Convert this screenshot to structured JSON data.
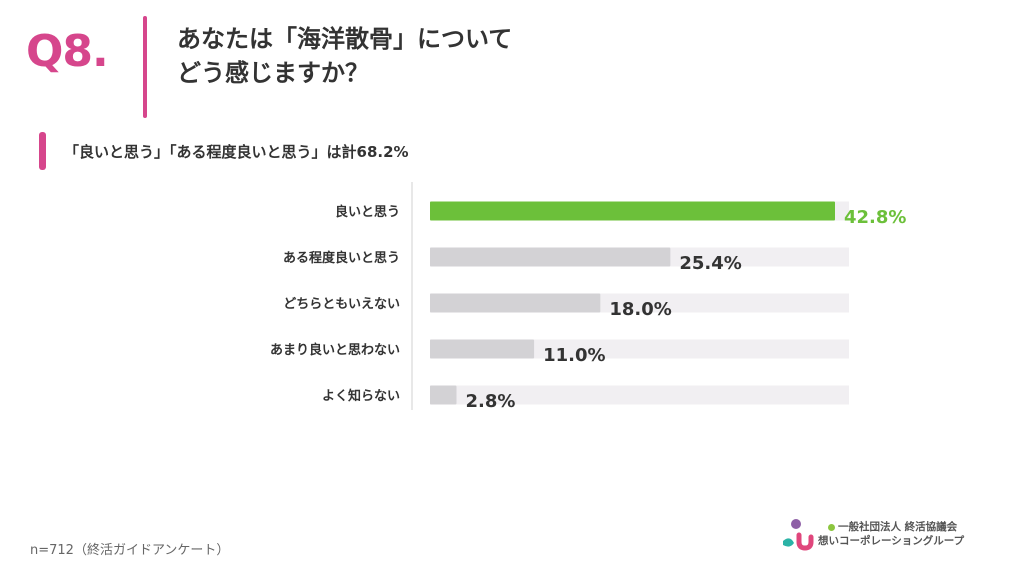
{
  "header": {
    "question_number": "Q8.",
    "question_line1": "あなたは「海洋散骨」について",
    "question_line2": "どう感じますか？"
  },
  "summary": {
    "text": "「良いと思う」「ある程度良いと思う」は計68.2%"
  },
  "colors": {
    "accent": "#d6468c",
    "highlight_bar": "#6cc03a",
    "highlight_label": "#6cc03a",
    "bar": "#d3d2d5",
    "track": "#f1eff2"
  },
  "chart_data": {
    "type": "bar",
    "orientation": "horizontal",
    "categories": [
      "良いと思う",
      "ある程度良いと思う",
      "どちらともいえない",
      "あまり良いと思わない",
      "よく知らない"
    ],
    "values": [
      42.8,
      25.4,
      18.0,
      11.0,
      2.8
    ],
    "value_labels": [
      "42.8%",
      "25.4%",
      "18.0%",
      "11.0%",
      "2.8%"
    ],
    "highlighted_index": 0,
    "xlim": [
      0,
      45
    ],
    "grid": false,
    "legend": "none"
  },
  "footer": {
    "note": "n=712（終活ガイドアンケート）",
    "logo_line1": "一般社団法人 終活協議会",
    "logo_line2": "想いコーポレーショングループ",
    "logo_icon": "organization-logo-icon"
  }
}
